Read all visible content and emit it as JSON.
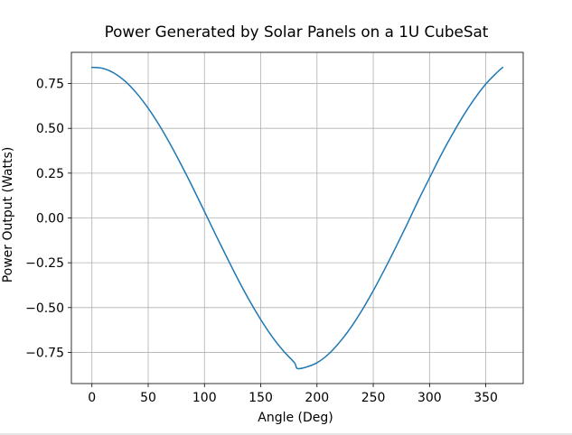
{
  "chart_data": {
    "type": "line",
    "title": "Power Generated by Solar Panels on a 1U CubeSat",
    "xlabel": "Angle (Deg)",
    "ylabel": "Power Output (Watts)",
    "xlim": [
      -18.25,
      383.25
    ],
    "ylim": [
      -0.924,
      0.924
    ],
    "grid": true,
    "xticks": [
      0,
      50,
      100,
      150,
      200,
      250,
      300,
      350
    ],
    "xtick_labels": [
      "0",
      "50",
      "100",
      "150",
      "200",
      "250",
      "300",
      "350"
    ],
    "yticks": [
      -0.75,
      -0.5,
      -0.25,
      0.0,
      0.25,
      0.5,
      0.75
    ],
    "ytick_labels": [
      "−0.75",
      "−0.50",
      "−0.25",
      "0.00",
      "0.25",
      "0.50",
      "0.75"
    ],
    "series": [
      {
        "color": "#1f77b4",
        "x": [
          0,
          10,
          20,
          30,
          40,
          50,
          60,
          70,
          80,
          90,
          100,
          110,
          120,
          130,
          140,
          150,
          160,
          170,
          180,
          182.5,
          190,
          200,
          210,
          220,
          230,
          240,
          250,
          260,
          270,
          280,
          290,
          300,
          310,
          320,
          330,
          340,
          350,
          360,
          365
        ],
        "y": [
          0.84,
          0.834,
          0.807,
          0.76,
          0.694,
          0.612,
          0.516,
          0.407,
          0.289,
          0.165,
          0.036,
          -0.094,
          -0.221,
          -0.345,
          -0.461,
          -0.567,
          -0.661,
          -0.741,
          -0.808,
          -0.84,
          -0.833,
          -0.808,
          -0.761,
          -0.694,
          -0.612,
          -0.515,
          -0.406,
          -0.288,
          -0.164,
          -0.036,
          0.097,
          0.223,
          0.348,
          0.463,
          0.57,
          0.665,
          0.747,
          0.812,
          0.84
        ]
      }
    ]
  }
}
